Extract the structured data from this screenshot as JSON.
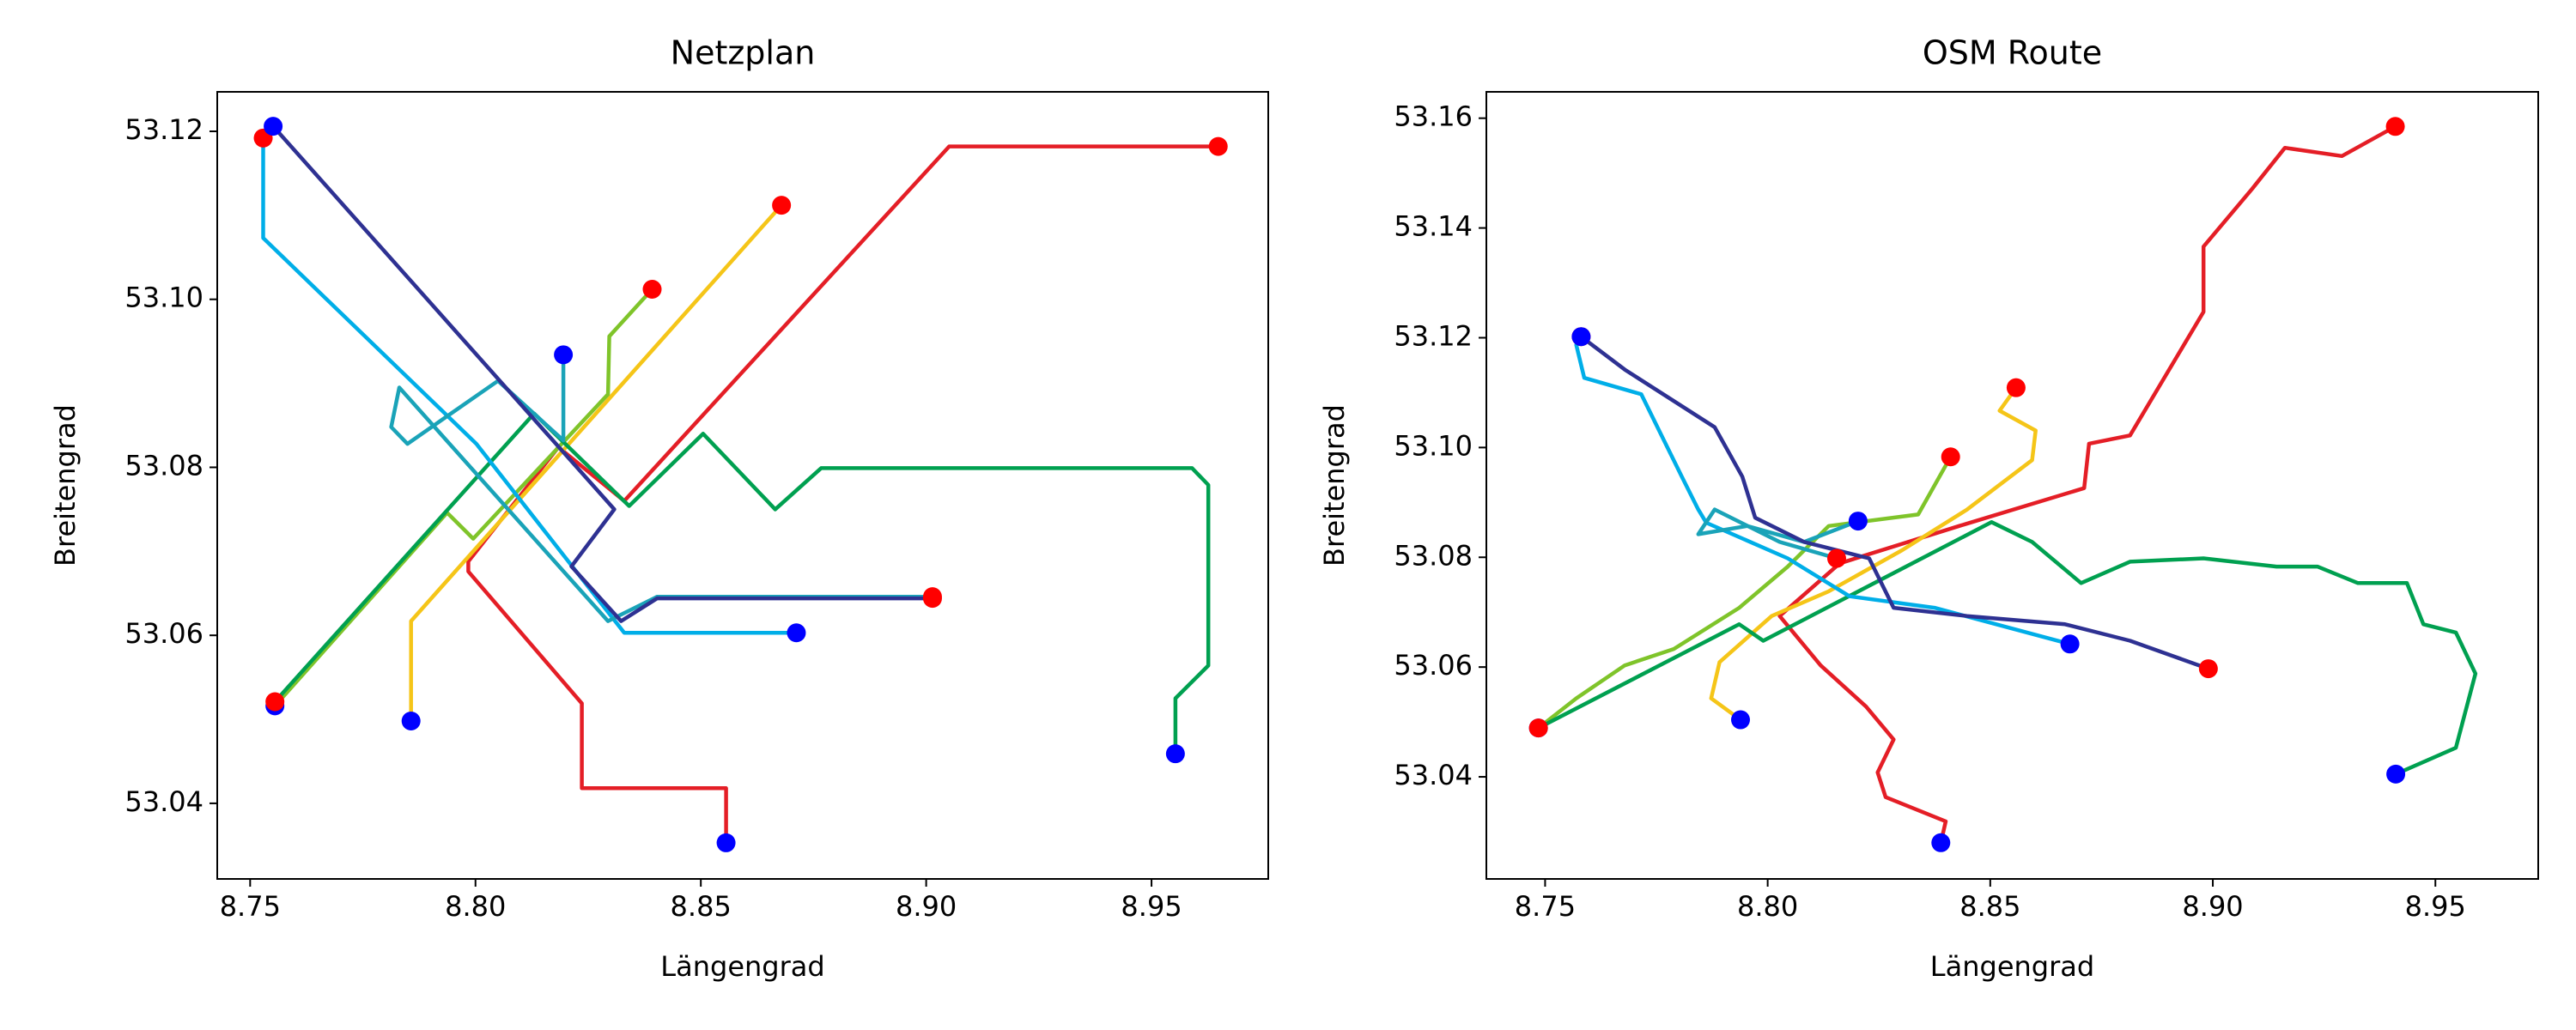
{
  "chart_data": [
    {
      "type": "line",
      "title": "Netzplan",
      "x_label": "Längengrad",
      "y_label": "Breitengrad",
      "xlim": [
        8.7427,
        8.9759
      ],
      "ylim": [
        53.031,
        53.1247
      ],
      "xticks": [
        8.75,
        {
          "value": 8.8,
          "label": "8.80"
        },
        8.85,
        {
          "value": 8.9,
          "label": "8.90"
        },
        8.95
      ],
      "yticks": [
        53.04,
        53.06,
        53.08,
        {
          "value": 53.1,
          "label": "53.10"
        },
        53.12
      ],
      "start_color": "#0000ff",
      "end_color": "#ff0000",
      "series": [
        {
          "color": "#e41e26",
          "x": [
            8.8556,
            8.8556,
            8.8236,
            8.8236,
            8.7984,
            8.7984,
            8.8184,
            8.833,
            8.9051,
            8.9648
          ],
          "values": [
            53.0353,
            53.0418,
            53.0418,
            53.0519,
            53.0676,
            53.0688,
            53.0824,
            53.076,
            53.1182,
            53.1182
          ]
        },
        {
          "color": "#f5c518",
          "x": [
            8.7857,
            8.7857,
            8.8679
          ],
          "values": [
            53.0498,
            53.0617,
            53.1112
          ]
        },
        {
          "color": "#7fc42a",
          "x": [
            8.7555,
            8.7937,
            8.7995,
            8.8294,
            8.8297,
            8.8392
          ],
          "values": [
            53.0516,
            53.0746,
            53.0715,
            53.0887,
            53.0956,
            53.1012
          ]
        },
        {
          "color": "#00a050",
          "x": [
            8.9553,
            8.9553,
            8.9626,
            8.9626,
            8.959,
            8.8767,
            8.8665,
            8.8505,
            8.8341,
            8.813,
            8.7555
          ],
          "values": [
            53.0459,
            53.0525,
            53.0564,
            53.0779,
            53.0799,
            53.0799,
            53.075,
            53.084,
            53.0754,
            53.0864,
            53.0521
          ]
        },
        {
          "color": "#00aee8",
          "x": [
            8.8712,
            8.833,
            8.8002,
            8.7529,
            8.7529
          ],
          "values": [
            53.0603,
            53.0603,
            53.0828,
            53.1073,
            53.1192
          ]
        },
        {
          "color": "#1aa3b8",
          "x": [
            8.8195,
            8.8195,
            8.805,
            8.7849,
            8.7813,
            8.7831,
            8.8039,
            8.8294,
            8.8403,
            8.9014
          ],
          "values": [
            53.0934,
            53.0832,
            53.0903,
            53.0828,
            53.0848,
            53.0895,
            53.077,
            53.0617,
            53.0646,
            53.0646
          ]
        },
        {
          "color": "#2e3192",
          "x": [
            8.7551,
            8.8308,
            8.8213,
            8.8323,
            8.8403,
            8.9014
          ],
          "values": [
            53.1206,
            53.075,
            53.0682,
            53.0617,
            53.0644,
            53.0644
          ]
        }
      ]
    },
    {
      "type": "line",
      "title": "OSM Route",
      "x_label": "Längengrad",
      "y_label": "Breitengrad",
      "xlim": [
        8.7368,
        8.9731
      ],
      "ylim": [
        53.0214,
        53.1648
      ],
      "xticks": [
        8.75,
        {
          "value": 8.8,
          "label": "8.80"
        },
        8.85,
        {
          "value": 8.9,
          "label": "8.90"
        },
        8.95
      ],
      "yticks": [
        53.04,
        53.06,
        53.08,
        {
          "value": 53.1,
          "label": "53.10"
        },
        53.12,
        53.14,
        53.16
      ],
      "start_color": "#0000ff",
      "end_color": "#ff0000",
      "series": [
        {
          "color": "#e41e26",
          "x": [
            8.8389,
            8.84,
            8.8265,
            8.8247,
            8.8283,
            8.8221,
            8.8119,
            8.8027,
            8.8162,
            8.843,
            8.8711,
            8.8722,
            8.8814,
            8.8979,
            8.8979,
            8.9088,
            8.9162,
            8.929,
            8.941
          ],
          "values": [
            53.028,
            53.0319,
            53.0363,
            53.0408,
            53.0468,
            53.0528,
            53.0603,
            53.0693,
            53.0789,
            53.0857,
            53.0926,
            53.1007,
            53.1022,
            53.1247,
            53.1366,
            53.1471,
            53.1546,
            53.1531,
            53.1585
          ]
        },
        {
          "color": "#f5c518",
          "x": [
            8.7939,
            8.7873,
            8.7892,
            8.8009,
            8.8137,
            8.8302,
            8.8448,
            8.8594,
            8.8602,
            8.8521,
            8.8558
          ],
          "values": [
            53.0504,
            53.0543,
            53.0609,
            53.0693,
            53.0738,
            53.0813,
            53.0887,
            53.0977,
            53.1031,
            53.1067,
            53.1109
          ]
        },
        {
          "color": "#7fc42a",
          "x": [
            8.7485,
            8.757,
            8.7679,
            8.7789,
            8.7936,
            8.8045,
            8.8137,
            8.8338,
            8.8411
          ],
          "values": [
            53.0489,
            53.0543,
            53.0603,
            53.0633,
            53.0708,
            53.0783,
            53.0857,
            53.0878,
            53.0983
          ]
        },
        {
          "color": "#00a050",
          "x": [
            8.9411,
            8.9546,
            8.959,
            8.9546,
            8.9473,
            8.9436,
            8.9326,
            8.9235,
            8.9143,
            8.8979,
            8.8814,
            8.8704,
            8.8594,
            8.8503,
            8.799,
            8.7936,
            8.7485
          ],
          "values": [
            53.0405,
            53.0453,
            53.0588,
            53.0663,
            53.0678,
            53.0753,
            53.0753,
            53.0783,
            53.0783,
            53.0798,
            53.0792,
            53.0753,
            53.0828,
            53.0864,
            53.0648,
            53.0678,
            53.0489
          ]
        },
        {
          "color": "#00aee8",
          "x": [
            8.8679,
            8.8375,
            8.8184,
            8.8045,
            8.7862,
            8.7844,
            8.7807,
            8.7716,
            8.7588,
            8.757,
            8.7581
          ],
          "values": [
            53.0642,
            53.0708,
            53.0729,
            53.0798,
            53.0863,
            53.0887,
            53.0947,
            53.1097,
            53.1127,
            53.1187,
            53.1202
          ]
        },
        {
          "color": "#1aa3b8",
          "x": [
            8.8203,
            8.8082,
            8.7954,
            8.7844,
            8.7881,
            8.8027,
            8.8155
          ],
          "values": [
            53.0866,
            53.0828,
            53.0857,
            53.0842,
            53.0887,
            53.0828,
            53.0798
          ]
        },
        {
          "color": "#2e3192",
          "x": [
            8.7581,
            8.7679,
            8.7881,
            8.7943,
            8.7972,
            8.8082,
            8.8228,
            8.8283,
            8.8448,
            8.8668,
            8.8814,
            8.899
          ],
          "values": [
            53.1202,
            53.1142,
            53.1037,
            53.0947,
            53.0872,
            53.0828,
            53.0798,
            53.0708,
            53.0693,
            53.0678,
            53.0648,
            53.0597
          ]
        }
      ]
    }
  ]
}
